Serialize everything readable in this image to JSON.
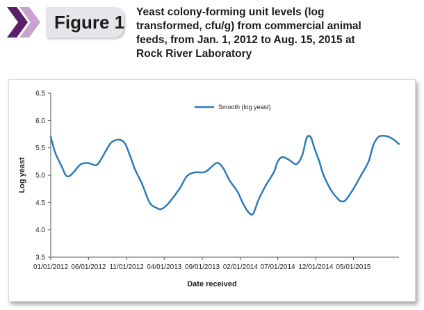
{
  "figure": {
    "label": "Figure 1"
  },
  "header": {
    "title_lines": [
      "Yeast colony-forming unit levels (log",
      "transformed, cfu/g) from commercial animal",
      "feeds, from Jan. 1, 2012 to Aug. 15, 2015 at",
      "Rock River Laboratory"
    ]
  },
  "colors": {
    "series": "#2b7bb9",
    "chevron_dark": "#5a1e6b",
    "chevron_light": "#c9a3cf",
    "tab": "#e6e6ea"
  },
  "chart_data": {
    "type": "line",
    "xlabel": "Date received",
    "ylabel": "Log yeast",
    "ylim": [
      3.5,
      6.5
    ],
    "y_ticks": [
      "6.5",
      "6.0",
      "5.5",
      "5.0",
      "4.5",
      "4.0",
      "3.5"
    ],
    "x_range": [
      "2012-01-01",
      "2015-10-31"
    ],
    "x_ticks": [
      {
        "date": "2012-01-01",
        "label": "01/01/2012"
      },
      {
        "date": "2012-06-01",
        "label": "06/01/2012"
      },
      {
        "date": "2012-11-01",
        "label": "11/01/2012"
      },
      {
        "date": "2013-04-01",
        "label": "04/01/2013"
      },
      {
        "date": "2013-09-01",
        "label": "09/01/2013"
      },
      {
        "date": "2014-02-01",
        "label": "02/01/2014"
      },
      {
        "date": "2014-07-01",
        "label": "07/01/2014"
      },
      {
        "date": "2014-12-01",
        "label": "12/01/2014"
      },
      {
        "date": "2015-05-01",
        "label": "05/01/2015"
      }
    ],
    "grid": false,
    "legend": "top-center",
    "series": [
      {
        "name": "Smooth (log yeast)",
        "points": [
          {
            "x": "2012-01-01",
            "y": 5.7
          },
          {
            "x": "2012-01-20",
            "y": 5.4
          },
          {
            "x": "2012-02-15",
            "y": 5.15
          },
          {
            "x": "2012-03-01",
            "y": 5.0
          },
          {
            "x": "2012-03-15",
            "y": 4.98
          },
          {
            "x": "2012-04-01",
            "y": 5.05
          },
          {
            "x": "2012-05-01",
            "y": 5.2
          },
          {
            "x": "2012-06-01",
            "y": 5.22
          },
          {
            "x": "2012-07-01",
            "y": 5.18
          },
          {
            "x": "2012-07-20",
            "y": 5.28
          },
          {
            "x": "2012-08-10",
            "y": 5.45
          },
          {
            "x": "2012-09-01",
            "y": 5.6
          },
          {
            "x": "2012-10-01",
            "y": 5.65
          },
          {
            "x": "2012-10-25",
            "y": 5.58
          },
          {
            "x": "2012-11-15",
            "y": 5.35
          },
          {
            "x": "2012-12-05",
            "y": 5.1
          },
          {
            "x": "2013-01-01",
            "y": 4.85
          },
          {
            "x": "2013-02-01",
            "y": 4.5
          },
          {
            "x": "2013-03-01",
            "y": 4.4
          },
          {
            "x": "2013-03-20",
            "y": 4.38
          },
          {
            "x": "2013-04-15",
            "y": 4.47
          },
          {
            "x": "2013-06-01",
            "y": 4.75
          },
          {
            "x": "2013-07-01",
            "y": 4.98
          },
          {
            "x": "2013-08-01",
            "y": 5.05
          },
          {
            "x": "2013-09-01",
            "y": 5.05
          },
          {
            "x": "2013-09-20",
            "y": 5.08
          },
          {
            "x": "2013-10-20",
            "y": 5.2
          },
          {
            "x": "2013-11-05",
            "y": 5.22
          },
          {
            "x": "2013-11-25",
            "y": 5.12
          },
          {
            "x": "2013-12-20",
            "y": 4.9
          },
          {
            "x": "2014-01-20",
            "y": 4.7
          },
          {
            "x": "2014-02-15",
            "y": 4.45
          },
          {
            "x": "2014-03-10",
            "y": 4.3
          },
          {
            "x": "2014-03-25",
            "y": 4.3
          },
          {
            "x": "2014-04-15",
            "y": 4.55
          },
          {
            "x": "2014-05-15",
            "y": 4.82
          },
          {
            "x": "2014-06-15",
            "y": 5.05
          },
          {
            "x": "2014-07-01",
            "y": 5.25
          },
          {
            "x": "2014-07-20",
            "y": 5.33
          },
          {
            "x": "2014-08-15",
            "y": 5.28
          },
          {
            "x": "2014-09-10",
            "y": 5.2
          },
          {
            "x": "2014-09-25",
            "y": 5.25
          },
          {
            "x": "2014-10-10",
            "y": 5.4
          },
          {
            "x": "2014-10-25",
            "y": 5.68
          },
          {
            "x": "2014-11-10",
            "y": 5.7
          },
          {
            "x": "2014-11-25",
            "y": 5.5
          },
          {
            "x": "2014-12-15",
            "y": 5.25
          },
          {
            "x": "2015-01-01",
            "y": 5.0
          },
          {
            "x": "2015-02-01",
            "y": 4.72
          },
          {
            "x": "2015-03-01",
            "y": 4.56
          },
          {
            "x": "2015-03-15",
            "y": 4.52
          },
          {
            "x": "2015-04-01",
            "y": 4.55
          },
          {
            "x": "2015-05-01",
            "y": 4.75
          },
          {
            "x": "2015-06-01",
            "y": 5.0
          },
          {
            "x": "2015-07-01",
            "y": 5.25
          },
          {
            "x": "2015-07-20",
            "y": 5.55
          },
          {
            "x": "2015-08-10",
            "y": 5.7
          },
          {
            "x": "2015-09-01",
            "y": 5.72
          },
          {
            "x": "2015-09-20",
            "y": 5.7
          },
          {
            "x": "2015-10-10",
            "y": 5.65
          },
          {
            "x": "2015-10-31",
            "y": 5.57
          }
        ]
      }
    ]
  }
}
